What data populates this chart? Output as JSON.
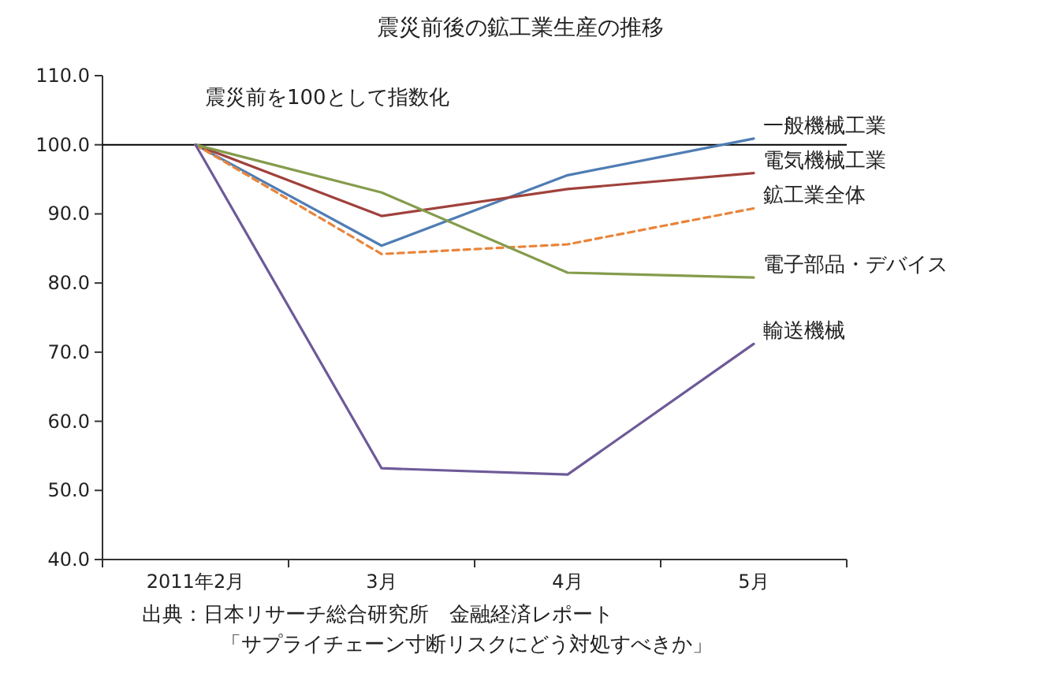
{
  "chart_data": {
    "type": "line",
    "title": "震災前後の鉱工業生産の推移",
    "categories": [
      "2011年2月",
      "3月",
      "4月",
      "5月"
    ],
    "series": [
      {
        "name": "一般機械工業",
        "color": "#4f7db3",
        "values": [
          100,
          85.4,
          95.6,
          100.9
        ]
      },
      {
        "name": "電気機械工業",
        "color": "#a0413c",
        "values": [
          100,
          89.7,
          93.6,
          95.9
        ]
      },
      {
        "name": "鉱工業全体",
        "color": "#e9843a",
        "values": [
          100,
          84.2,
          85.6,
          90.8
        ],
        "line_style": "dashed"
      },
      {
        "name": "電子部品・デバイス",
        "color": "#859c4c",
        "values": [
          100,
          93.1,
          81.5,
          80.8
        ]
      },
      {
        "name": "輸送機械",
        "color": "#6d5a98",
        "values": [
          100,
          53.2,
          52.3,
          71.2
        ]
      }
    ],
    "ylim": [
      40,
      110
    ],
    "yticks": [
      {
        "value": 40,
        "label": "40.0"
      },
      {
        "value": 50,
        "label": "50.0"
      },
      {
        "value": 60,
        "label": "60.0"
      },
      {
        "value": 70,
        "label": "70.0"
      },
      {
        "value": 80,
        "label": "80.0"
      },
      {
        "value": 90,
        "label": "90.0"
      },
      {
        "value": 100,
        "label": "100.0"
      },
      {
        "value": 110,
        "label": "110.0"
      }
    ],
    "ref_lines": [
      {
        "axis": "y",
        "value": 100,
        "label": "震災前を100として指数化",
        "color": "#000000"
      }
    ],
    "annotations": [
      "出典：日本リサーチ総合研究所　金融経済レポート",
      "「サプライチェーン寸断リスクにどう対処すべきか」"
    ],
    "grid": false,
    "line_style": "solid"
  }
}
